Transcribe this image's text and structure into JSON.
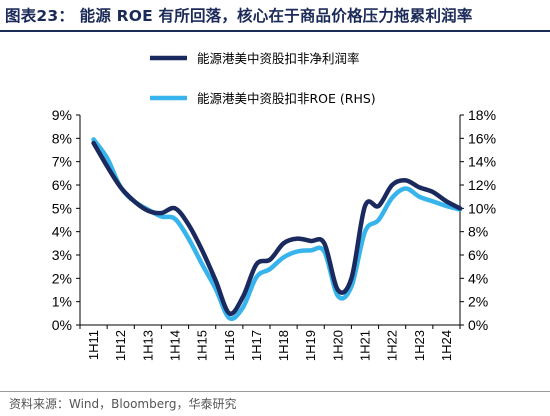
{
  "header": {
    "title": "图表23：  能源 ROE 有所回落，核心在于商品价格压力拖累利润率"
  },
  "footer": {
    "source": "资料来源：Wind，Bloomberg，华泰研究"
  },
  "chart_data": {
    "type": "line",
    "title": "",
    "xlabel": "",
    "ylabel": "",
    "categories": [
      "1H11",
      "1H12",
      "1H13",
      "1H14",
      "1H15",
      "1H16",
      "1H17",
      "1H18",
      "1H19",
      "1H20",
      "1H21",
      "1H22",
      "1H23",
      "1H24"
    ],
    "x_tick_labels": [
      "1H11",
      "1H12",
      "1H13",
      "1H14",
      "1H15",
      "1H16",
      "1H17",
      "1H18",
      "1H19",
      "1H20",
      "1H21",
      "1H22",
      "1H23",
      "1H24"
    ],
    "x": [
      0,
      0.5,
      1,
      1.5,
      2,
      2.5,
      3,
      3.5,
      4,
      4.5,
      5,
      5.5,
      6,
      6.5,
      7,
      7.5,
      8,
      8.5,
      9,
      9.5,
      10,
      10.5,
      11,
      11.5,
      12,
      12.5,
      13,
      13.5
    ],
    "y_left_ticks": [
      "0%",
      "1%",
      "2%",
      "3%",
      "4%",
      "5%",
      "6%",
      "7%",
      "8%",
      "9%"
    ],
    "y_right_ticks": [
      "0%",
      "2%",
      "4%",
      "6%",
      "8%",
      "10%",
      "12%",
      "14%",
      "16%",
      "18%"
    ],
    "ylim_left": [
      0,
      9
    ],
    "ylim_right": [
      0,
      18
    ],
    "legend_position": "top",
    "series": [
      {
        "name": "能源港美中资股扣非净利润率",
        "axis": "left",
        "color": "#1b2a5e",
        "values": [
          7.8,
          6.8,
          5.9,
          5.3,
          4.9,
          4.8,
          5.0,
          4.3,
          3.2,
          1.9,
          0.5,
          1.2,
          2.6,
          2.8,
          3.5,
          3.7,
          3.6,
          3.5,
          1.5,
          2.0,
          5.1,
          5.1,
          6.0,
          6.2,
          5.9,
          5.7,
          5.3,
          5.0
        ]
      },
      {
        "name": "能源港美中资股扣非ROE (RHS)",
        "axis": "right",
        "color": "#37b4ec",
        "values": [
          15.9,
          14.3,
          11.8,
          10.6,
          9.9,
          9.3,
          9.1,
          7.4,
          5.2,
          3.1,
          0.6,
          1.5,
          4.1,
          4.8,
          5.8,
          6.3,
          6.4,
          6.3,
          2.5,
          3.3,
          8.0,
          9.0,
          10.9,
          11.7,
          11.0,
          10.6,
          10.2,
          9.9
        ]
      }
    ]
  }
}
